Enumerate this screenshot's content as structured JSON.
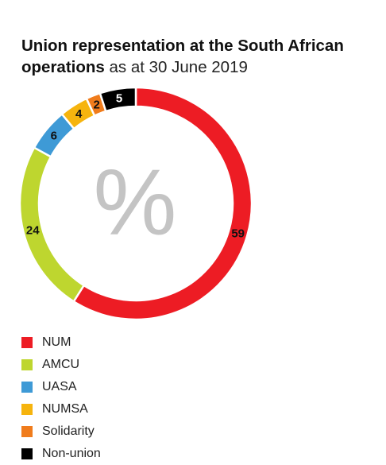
{
  "title": {
    "bold": "Union representation at the South African operations",
    "light": "as at 30 June 2019"
  },
  "center_symbol": "%",
  "chart_data": {
    "type": "pie",
    "variant": "donut",
    "title": "Union representation at the South African operations as at 30 June 2019",
    "unit": "%",
    "legend_position": "bottom-left",
    "slices": [
      {
        "name": "NUM",
        "value": 59,
        "label": "59",
        "color": "#ED1C24",
        "label_color": "#111111"
      },
      {
        "name": "AMCU",
        "value": 24,
        "label": "24",
        "color": "#BED62F",
        "label_color": "#111111"
      },
      {
        "name": "UASA",
        "value": 6,
        "label": "6",
        "color": "#3E9AD6",
        "label_color": "#111111"
      },
      {
        "name": "NUMSA",
        "value": 4,
        "label": "4",
        "color": "#F6B40E",
        "label_color": "#111111"
      },
      {
        "name": "Solidarity",
        "value": 2,
        "label": "2",
        "color": "#F07C1C",
        "label_color": "#111111"
      },
      {
        "name": "Non-union",
        "value": 5,
        "label": "5",
        "color": "#000000",
        "label_color": "#ffffff"
      }
    ]
  }
}
